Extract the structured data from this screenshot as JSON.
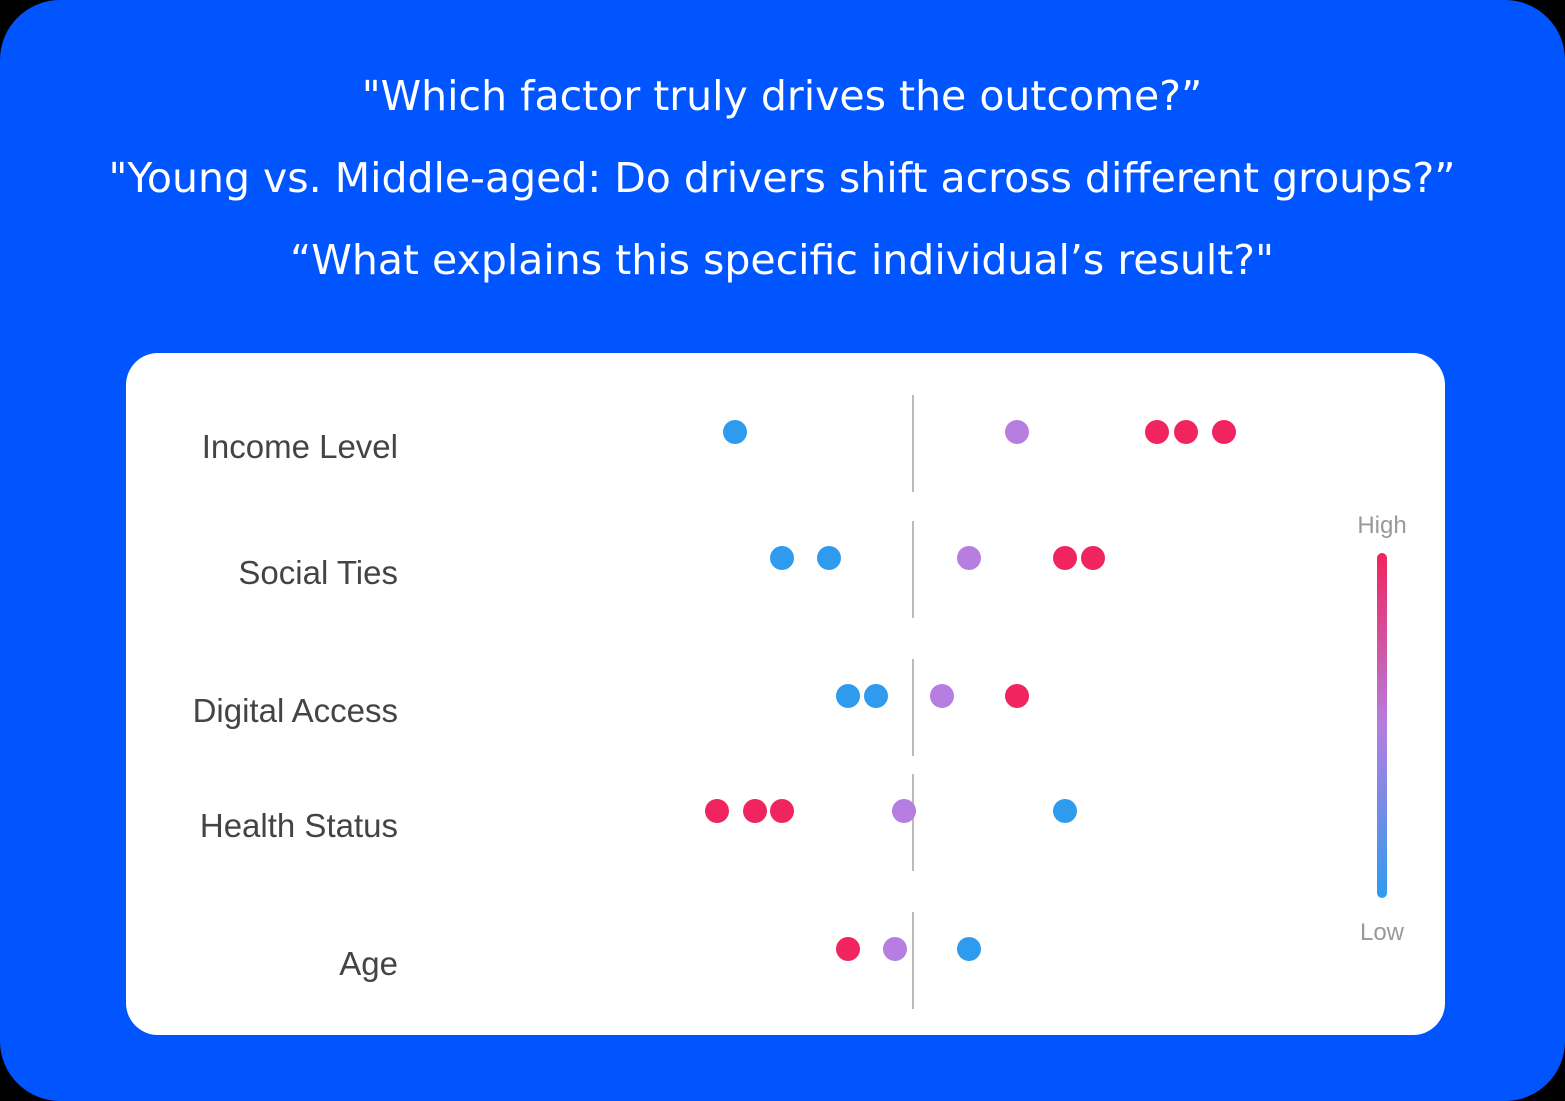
{
  "headlines": [
    "\"Which factor truly drives the outcome?”",
    "\"Young vs. Middle-aged: Do drivers shift across different groups?”",
    "“What explains this specific individual’s result?\""
  ],
  "chart_data": {
    "type": "beeswarm",
    "categories": [
      "Income Level",
      "Social Ties",
      "Digital Access",
      "Health Status",
      "Age"
    ],
    "rows": [
      {
        "values": [
          -1.78,
          1.04,
          2.44,
          2.73,
          3.11
        ],
        "colors": [
          "#2f9bef",
          "#b57ee0",
          "#f0245e",
          "#f0245e",
          "#f0245e"
        ]
      },
      {
        "values": [
          -1.31,
          -0.84,
          0.56,
          1.52,
          1.8
        ],
        "colors": [
          "#2f9bef",
          "#2f9bef",
          "#b57ee0",
          "#f0245e",
          "#f0245e"
        ]
      },
      {
        "values": [
          -0.65,
          -0.37,
          0.29,
          1.04
        ],
        "colors": [
          "#2f9bef",
          "#2f9bef",
          "#b57ee0",
          "#f0245e"
        ]
      },
      {
        "values": [
          -1.96,
          -1.58,
          -1.31,
          -0.09,
          1.52
        ],
        "colors": [
          "#f0245e",
          "#f0245e",
          "#f0245e",
          "#b57ee0",
          "#2f9bef"
        ]
      },
      {
        "values": [
          -0.65,
          -0.18,
          0.56
        ],
        "colors": [
          "#f0245e",
          "#b57ee0",
          "#2f9bef"
        ]
      }
    ],
    "xlim": [
      -2.5,
      3.5
    ],
    "colorbar": {
      "high": "High",
      "low": "Low",
      "colors": [
        "#f0245e",
        "#b57ee0",
        "#2f9bef"
      ]
    }
  }
}
